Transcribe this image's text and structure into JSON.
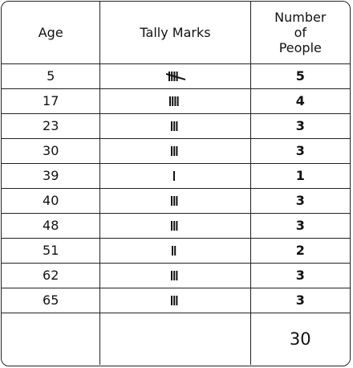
{
  "table": {
    "headers": {
      "age": "Age",
      "tally": "Tally Marks",
      "count_line1": "Number",
      "count_line2": "of",
      "count_line3": "People"
    },
    "rows": [
      {
        "age": "5",
        "tally_count": 5,
        "count": "5"
      },
      {
        "age": "17",
        "tally_count": 4,
        "count": "4"
      },
      {
        "age": "23",
        "tally_count": 3,
        "count": "3"
      },
      {
        "age": "30",
        "tally_count": 3,
        "count": "3"
      },
      {
        "age": "39",
        "tally_count": 1,
        "count": "1"
      },
      {
        "age": "40",
        "tally_count": 3,
        "count": "3"
      },
      {
        "age": "48",
        "tally_count": 3,
        "count": "3"
      },
      {
        "age": "51",
        "tally_count": 2,
        "count": "2"
      },
      {
        "age": "62",
        "tally_count": 3,
        "count": "3"
      },
      {
        "age": "65",
        "tally_count": 3,
        "count": "3"
      }
    ],
    "total": "30"
  }
}
